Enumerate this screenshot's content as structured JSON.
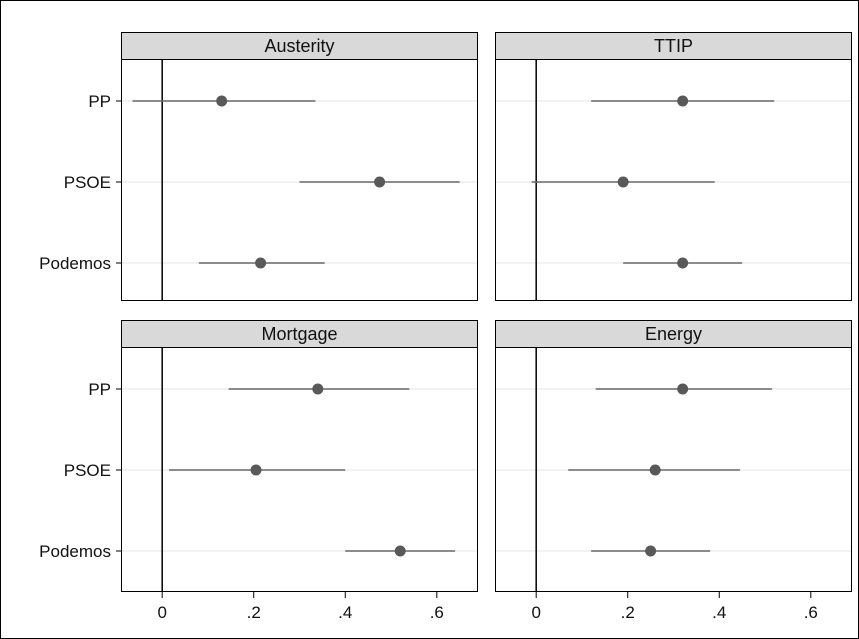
{
  "chart_data": {
    "type": "scatter",
    "subtype": "coefficient-plot-with-confidence-intervals",
    "layout": "2x2 facets",
    "categories": [
      "PP",
      "PSOE",
      "Podemos"
    ],
    "xlim": [
      -0.09,
      0.69
    ],
    "xticks": [
      0,
      0.2,
      0.4,
      0.6
    ],
    "xtick_labels": [
      "0",
      ".2",
      ".4",
      ".6"
    ],
    "reference_line_x": 0,
    "grid": "horizontal lines at each category",
    "colors": {
      "marker": "#595959",
      "ci_line": "#666666",
      "strip_fill": "#d9d9d9",
      "gridline": "#e6e6e6",
      "frame": "#000000"
    },
    "panels": [
      {
        "title": "Austerity",
        "estimates": [
          0.13,
          0.475,
          0.215
        ],
        "ci_low": [
          -0.065,
          0.3,
          0.08
        ],
        "ci_high": [
          0.335,
          0.65,
          0.355
        ]
      },
      {
        "title": "TTIP",
        "estimates": [
          0.32,
          0.19,
          0.32
        ],
        "ci_low": [
          0.12,
          -0.01,
          0.19
        ],
        "ci_high": [
          0.52,
          0.39,
          0.45
        ]
      },
      {
        "title": "Mortgage",
        "estimates": [
          0.34,
          0.205,
          0.52
        ],
        "ci_low": [
          0.145,
          0.015,
          0.4
        ],
        "ci_high": [
          0.54,
          0.4,
          0.64
        ]
      },
      {
        "title": "Energy",
        "estimates": [
          0.32,
          0.26,
          0.25
        ],
        "ci_low": [
          0.13,
          0.07,
          0.12
        ],
        "ci_high": [
          0.515,
          0.445,
          0.38
        ]
      }
    ]
  }
}
